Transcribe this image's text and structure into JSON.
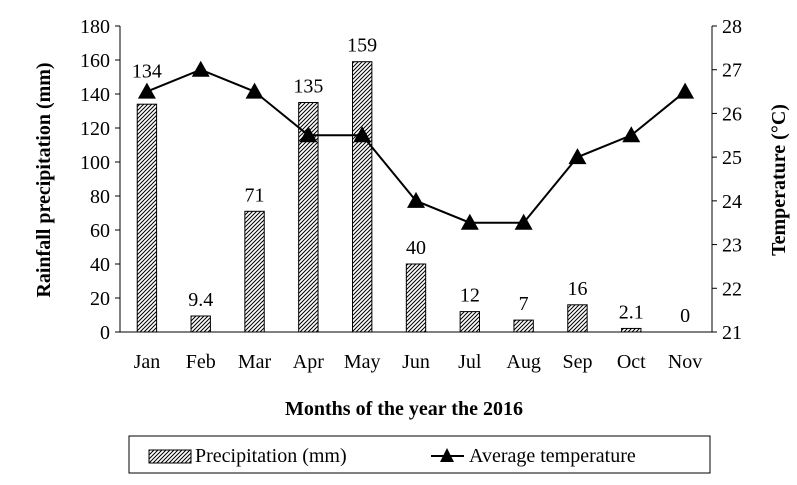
{
  "chart_data": {
    "type": "bar+line",
    "categories": [
      "Jan",
      "Feb",
      "Mar",
      "Apr",
      "May",
      "Jun",
      "Jul",
      "Aug",
      "Sep",
      "Oct",
      "Nov"
    ],
    "series": [
      {
        "name": "Precipitation (mm)",
        "type": "bar",
        "axis": "left",
        "values": [
          134,
          9.4,
          71,
          135,
          159,
          40,
          12,
          7,
          16,
          2.1,
          0
        ],
        "labels": [
          "134",
          "9.4",
          "71",
          "135",
          "159",
          "40",
          "12",
          "7",
          "16",
          "2.1",
          "0"
        ],
        "pattern": "diagonal-hatch",
        "color": "#000000"
      },
      {
        "name": "Average temperature",
        "type": "line",
        "axis": "right",
        "marker": "triangle",
        "values": [
          26.5,
          27,
          26.5,
          25.5,
          25.5,
          24,
          23.5,
          23.5,
          25,
          25.5,
          26.5
        ],
        "color": "#000000"
      }
    ],
    "xlabel": "Months of the year the 2016",
    "ylabel": "Rainfall precipitation (mm)",
    "y2label": "Temperature (°C)",
    "ylim": [
      0,
      180
    ],
    "y2lim": [
      21,
      28
    ],
    "yticks": [
      "0",
      "20",
      "40",
      "60",
      "80",
      "100",
      "120",
      "140",
      "160",
      "180"
    ],
    "y2ticks": [
      "21",
      "22",
      "23",
      "24",
      "25",
      "26",
      "27",
      "28"
    ],
    "grid": false,
    "legend": "bottom"
  }
}
